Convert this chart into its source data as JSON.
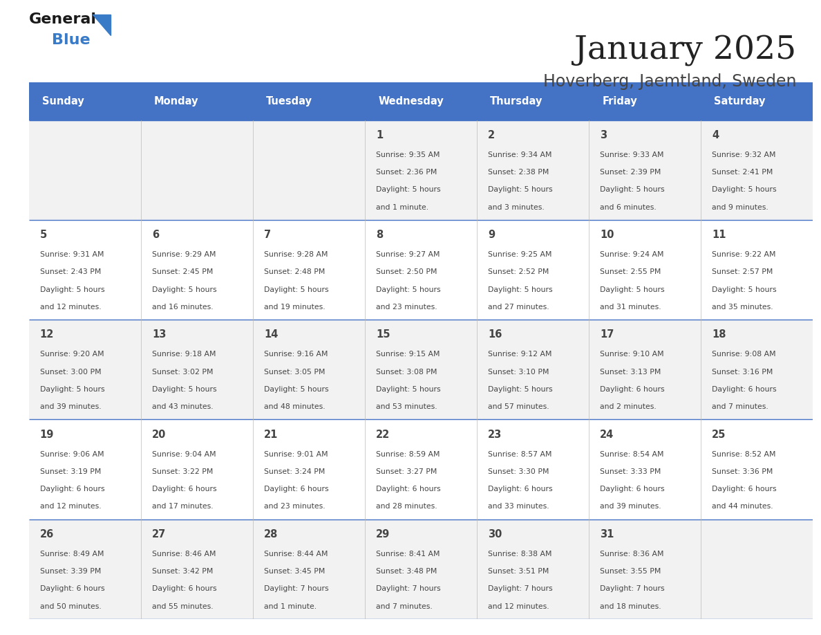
{
  "title": "January 2025",
  "subtitle": "Hoverberg, Jaemtland, Sweden",
  "header_color": "#4472C4",
  "header_text_color": "#FFFFFF",
  "weekdays": [
    "Sunday",
    "Monday",
    "Tuesday",
    "Wednesday",
    "Thursday",
    "Friday",
    "Saturday"
  ],
  "row_colors": [
    "#F2F2F2",
    "#FFFFFF"
  ],
  "border_color": "#4472C4",
  "text_color": "#444444",
  "days": [
    {
      "day": 1,
      "col": 3,
      "row": 0,
      "sunrise": "9:35 AM",
      "sunset": "2:36 PM",
      "daylight_line1": "Daylight: 5 hours",
      "daylight_line2": "and 1 minute."
    },
    {
      "day": 2,
      "col": 4,
      "row": 0,
      "sunrise": "9:34 AM",
      "sunset": "2:38 PM",
      "daylight_line1": "Daylight: 5 hours",
      "daylight_line2": "and 3 minutes."
    },
    {
      "day": 3,
      "col": 5,
      "row": 0,
      "sunrise": "9:33 AM",
      "sunset": "2:39 PM",
      "daylight_line1": "Daylight: 5 hours",
      "daylight_line2": "and 6 minutes."
    },
    {
      "day": 4,
      "col": 6,
      "row": 0,
      "sunrise": "9:32 AM",
      "sunset": "2:41 PM",
      "daylight_line1": "Daylight: 5 hours",
      "daylight_line2": "and 9 minutes."
    },
    {
      "day": 5,
      "col": 0,
      "row": 1,
      "sunrise": "9:31 AM",
      "sunset": "2:43 PM",
      "daylight_line1": "Daylight: 5 hours",
      "daylight_line2": "and 12 minutes."
    },
    {
      "day": 6,
      "col": 1,
      "row": 1,
      "sunrise": "9:29 AM",
      "sunset": "2:45 PM",
      "daylight_line1": "Daylight: 5 hours",
      "daylight_line2": "and 16 minutes."
    },
    {
      "day": 7,
      "col": 2,
      "row": 1,
      "sunrise": "9:28 AM",
      "sunset": "2:48 PM",
      "daylight_line1": "Daylight: 5 hours",
      "daylight_line2": "and 19 minutes."
    },
    {
      "day": 8,
      "col": 3,
      "row": 1,
      "sunrise": "9:27 AM",
      "sunset": "2:50 PM",
      "daylight_line1": "Daylight: 5 hours",
      "daylight_line2": "and 23 minutes."
    },
    {
      "day": 9,
      "col": 4,
      "row": 1,
      "sunrise": "9:25 AM",
      "sunset": "2:52 PM",
      "daylight_line1": "Daylight: 5 hours",
      "daylight_line2": "and 27 minutes."
    },
    {
      "day": 10,
      "col": 5,
      "row": 1,
      "sunrise": "9:24 AM",
      "sunset": "2:55 PM",
      "daylight_line1": "Daylight: 5 hours",
      "daylight_line2": "and 31 minutes."
    },
    {
      "day": 11,
      "col": 6,
      "row": 1,
      "sunrise": "9:22 AM",
      "sunset": "2:57 PM",
      "daylight_line1": "Daylight: 5 hours",
      "daylight_line2": "and 35 minutes."
    },
    {
      "day": 12,
      "col": 0,
      "row": 2,
      "sunrise": "9:20 AM",
      "sunset": "3:00 PM",
      "daylight_line1": "Daylight: 5 hours",
      "daylight_line2": "and 39 minutes."
    },
    {
      "day": 13,
      "col": 1,
      "row": 2,
      "sunrise": "9:18 AM",
      "sunset": "3:02 PM",
      "daylight_line1": "Daylight: 5 hours",
      "daylight_line2": "and 43 minutes."
    },
    {
      "day": 14,
      "col": 2,
      "row": 2,
      "sunrise": "9:16 AM",
      "sunset": "3:05 PM",
      "daylight_line1": "Daylight: 5 hours",
      "daylight_line2": "and 48 minutes."
    },
    {
      "day": 15,
      "col": 3,
      "row": 2,
      "sunrise": "9:15 AM",
      "sunset": "3:08 PM",
      "daylight_line1": "Daylight: 5 hours",
      "daylight_line2": "and 53 minutes."
    },
    {
      "day": 16,
      "col": 4,
      "row": 2,
      "sunrise": "9:12 AM",
      "sunset": "3:10 PM",
      "daylight_line1": "Daylight: 5 hours",
      "daylight_line2": "and 57 minutes."
    },
    {
      "day": 17,
      "col": 5,
      "row": 2,
      "sunrise": "9:10 AM",
      "sunset": "3:13 PM",
      "daylight_line1": "Daylight: 6 hours",
      "daylight_line2": "and 2 minutes."
    },
    {
      "day": 18,
      "col": 6,
      "row": 2,
      "sunrise": "9:08 AM",
      "sunset": "3:16 PM",
      "daylight_line1": "Daylight: 6 hours",
      "daylight_line2": "and 7 minutes."
    },
    {
      "day": 19,
      "col": 0,
      "row": 3,
      "sunrise": "9:06 AM",
      "sunset": "3:19 PM",
      "daylight_line1": "Daylight: 6 hours",
      "daylight_line2": "and 12 minutes."
    },
    {
      "day": 20,
      "col": 1,
      "row": 3,
      "sunrise": "9:04 AM",
      "sunset": "3:22 PM",
      "daylight_line1": "Daylight: 6 hours",
      "daylight_line2": "and 17 minutes."
    },
    {
      "day": 21,
      "col": 2,
      "row": 3,
      "sunrise": "9:01 AM",
      "sunset": "3:24 PM",
      "daylight_line1": "Daylight: 6 hours",
      "daylight_line2": "and 23 minutes."
    },
    {
      "day": 22,
      "col": 3,
      "row": 3,
      "sunrise": "8:59 AM",
      "sunset": "3:27 PM",
      "daylight_line1": "Daylight: 6 hours",
      "daylight_line2": "and 28 minutes."
    },
    {
      "day": 23,
      "col": 4,
      "row": 3,
      "sunrise": "8:57 AM",
      "sunset": "3:30 PM",
      "daylight_line1": "Daylight: 6 hours",
      "daylight_line2": "and 33 minutes."
    },
    {
      "day": 24,
      "col": 5,
      "row": 3,
      "sunrise": "8:54 AM",
      "sunset": "3:33 PM",
      "daylight_line1": "Daylight: 6 hours",
      "daylight_line2": "and 39 minutes."
    },
    {
      "day": 25,
      "col": 6,
      "row": 3,
      "sunrise": "8:52 AM",
      "sunset": "3:36 PM",
      "daylight_line1": "Daylight: 6 hours",
      "daylight_line2": "and 44 minutes."
    },
    {
      "day": 26,
      "col": 0,
      "row": 4,
      "sunrise": "8:49 AM",
      "sunset": "3:39 PM",
      "daylight_line1": "Daylight: 6 hours",
      "daylight_line2": "and 50 minutes."
    },
    {
      "day": 27,
      "col": 1,
      "row": 4,
      "sunrise": "8:46 AM",
      "sunset": "3:42 PM",
      "daylight_line1": "Daylight: 6 hours",
      "daylight_line2": "and 55 minutes."
    },
    {
      "day": 28,
      "col": 2,
      "row": 4,
      "sunrise": "8:44 AM",
      "sunset": "3:45 PM",
      "daylight_line1": "Daylight: 7 hours",
      "daylight_line2": "and 1 minute."
    },
    {
      "day": 29,
      "col": 3,
      "row": 4,
      "sunrise": "8:41 AM",
      "sunset": "3:48 PM",
      "daylight_line1": "Daylight: 7 hours",
      "daylight_line2": "and 7 minutes."
    },
    {
      "day": 30,
      "col": 4,
      "row": 4,
      "sunrise": "8:38 AM",
      "sunset": "3:51 PM",
      "daylight_line1": "Daylight: 7 hours",
      "daylight_line2": "and 12 minutes."
    },
    {
      "day": 31,
      "col": 5,
      "row": 4,
      "sunrise": "8:36 AM",
      "sunset": "3:55 PM",
      "daylight_line1": "Daylight: 7 hours",
      "daylight_line2": "and 18 minutes."
    }
  ],
  "num_rows": 5,
  "num_cols": 7,
  "logo_text_general": "General",
  "logo_text_blue": "Blue",
  "logo_color_general": "#1a1a1a",
  "logo_color_blue": "#3a7bc8",
  "logo_triangle_color": "#3a7bc8"
}
